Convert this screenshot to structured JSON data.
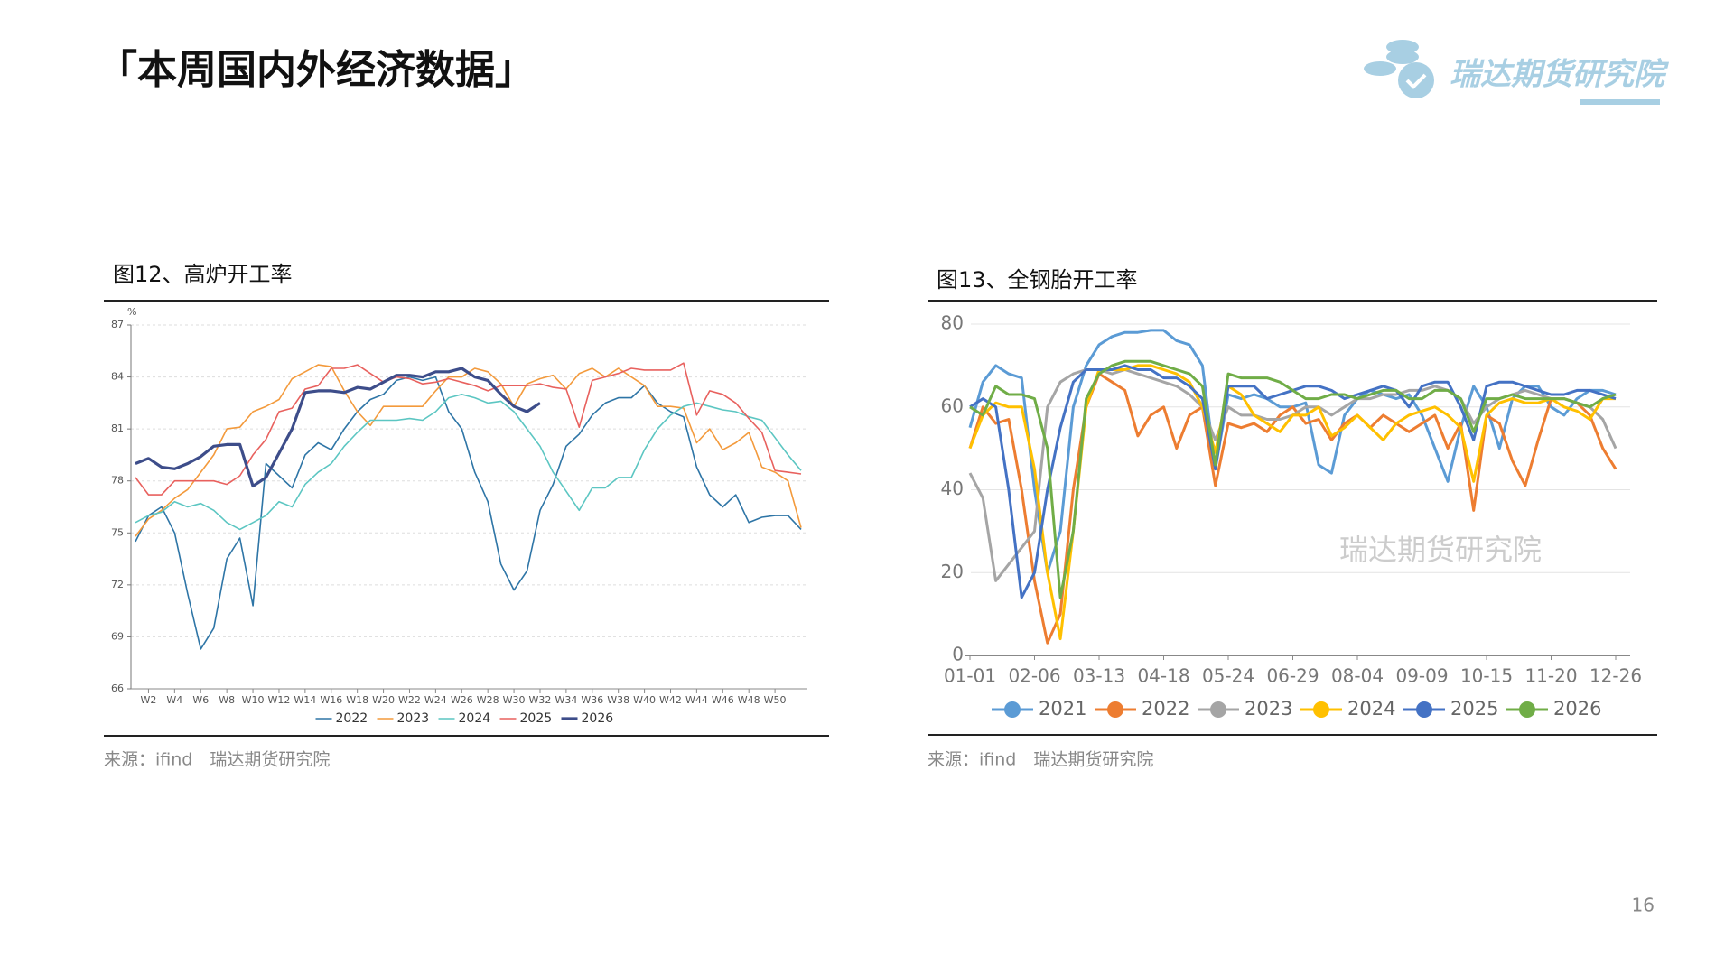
{
  "title": "「本周国内外经济数据」",
  "logo_text": "瑞达期货研究院",
  "page_number": "16",
  "chart_data": [
    {
      "type": "line",
      "title": "图12、高炉开工率",
      "y_unit": "%",
      "note": "来源：ifind　瑞达期货研究院",
      "categories": [
        null,
        "W2",
        null,
        "W4",
        null,
        "W6",
        null,
        "W8",
        null,
        "W10",
        null,
        "W12",
        null,
        "W14",
        null,
        "W16",
        null,
        "W18",
        null,
        "W20",
        null,
        "W22",
        null,
        "W24",
        null,
        "W26",
        null,
        "W28",
        null,
        "W30",
        null,
        "W32",
        null,
        "W34",
        null,
        "W36",
        null,
        "W38",
        null,
        "W40",
        null,
        "W42",
        null,
        "W44",
        null,
        "W46",
        null,
        "W48",
        null,
        "W50",
        null,
        null
      ],
      "ylim": [
        66,
        87
      ],
      "yticks": [
        66,
        69,
        72,
        75,
        78,
        81,
        84,
        87
      ],
      "grid": true,
      "legend": "bottom",
      "series": [
        {
          "name": "2022",
          "color": "#2e75a6",
          "values": [
            74.5,
            76,
            76.5,
            75,
            71.5,
            68.3,
            69.5,
            73.5,
            74.7,
            70.8,
            79,
            78.3,
            77.6,
            79.5,
            80.2,
            79.8,
            81,
            82,
            82.7,
            83,
            83.8,
            84,
            83.8,
            84,
            82,
            81,
            78.5,
            76.8,
            73.2,
            71.7,
            72.8,
            76.3,
            77.8,
            80,
            80.7,
            81.8,
            82.5,
            82.8,
            82.8,
            83.5,
            82.5,
            82,
            81.7,
            78.8,
            77.2,
            76.5,
            77.2,
            75.6,
            75.9,
            76,
            76,
            75.2
          ]
        },
        {
          "name": "2023",
          "color": "#f39a3c",
          "values": [
            74.8,
            75.8,
            76.3,
            77,
            77.5,
            78.5,
            79.5,
            81,
            81.1,
            82,
            82.3,
            82.7,
            83.9,
            84.3,
            84.7,
            84.6,
            83.2,
            82,
            81.2,
            82.3,
            82.3,
            82.3,
            82.3,
            83.2,
            84,
            84,
            84.5,
            84.3,
            83.6,
            82.3,
            83.6,
            83.9,
            84.1,
            83.3,
            84.2,
            84.5,
            84,
            84.5,
            84,
            83.5,
            82.3,
            82.3,
            82.2,
            80.2,
            81,
            79.8,
            80.2,
            80.8,
            78.8,
            78.5,
            78,
            75.3
          ]
        },
        {
          "name": "2024",
          "color": "#5cc6c2",
          "values": [
            75.6,
            76,
            76.2,
            76.8,
            76.5,
            76.7,
            76.3,
            75.6,
            75.2,
            75.6,
            76,
            76.8,
            76.5,
            77.8,
            78.5,
            79,
            80,
            80.8,
            81.5,
            81.5,
            81.5,
            81.6,
            81.5,
            82,
            82.8,
            83,
            82.8,
            82.5,
            82.6,
            82,
            81,
            80,
            78.5,
            77.4,
            76.3,
            77.6,
            77.6,
            78.2,
            78.2,
            79.8,
            81,
            81.8,
            82.3,
            82.5,
            82.3,
            82.1,
            82,
            81.7,
            81.5,
            80.5,
            79.5,
            78.6
          ]
        },
        {
          "name": "2025",
          "color": "#e8615e",
          "values": [
            78.2,
            77.2,
            77.2,
            78,
            78,
            78,
            78,
            77.8,
            78.3,
            79.5,
            80.4,
            82,
            82.2,
            83.3,
            83.5,
            84.5,
            84.5,
            84.7,
            84.2,
            83.7,
            84,
            83.9,
            83.6,
            83.7,
            83.9,
            83.7,
            83.5,
            83.2,
            83.5,
            83.5,
            83.5,
            83.6,
            83.4,
            83.3,
            81.1,
            83.8,
            84,
            84.2,
            84.5,
            84.4,
            84.4,
            84.4,
            84.8,
            81.8,
            83.2,
            83,
            82.5,
            81.6,
            80.8,
            78.6,
            78.5,
            78.4
          ]
        },
        {
          "name": "2026",
          "color": "#3d4d8a",
          "values": [
            79,
            79.3,
            78.8,
            78.7,
            79,
            79.4,
            80,
            80.1,
            80.1,
            77.7,
            78.2,
            79.6,
            81,
            83.1,
            83.2,
            83.2,
            83.1,
            83.4,
            83.3,
            83.7,
            84.1,
            84.1,
            84,
            84.3,
            84.3,
            84.5,
            84,
            83.8,
            83,
            82.3,
            82,
            82.5,
            null,
            null,
            null,
            null,
            null,
            null,
            null,
            null,
            null,
            null,
            null,
            null,
            null,
            null,
            null,
            null,
            null,
            null,
            null,
            null
          ]
        }
      ]
    },
    {
      "type": "line",
      "title": "图13、全钢胎开工率",
      "watermark": "瑞达期货研究院",
      "note": "来源：ifind　瑞达期货研究院",
      "categories": [
        "01-01",
        null,
        null,
        null,
        null,
        "02-06",
        null,
        null,
        null,
        null,
        "03-13",
        null,
        null,
        null,
        null,
        "04-18",
        null,
        null,
        null,
        null,
        "05-24",
        null,
        null,
        null,
        null,
        "06-29",
        null,
        null,
        null,
        null,
        "08-04",
        null,
        null,
        null,
        null,
        "09-09",
        null,
        null,
        null,
        null,
        "10-15",
        null,
        null,
        null,
        null,
        "11-20",
        null,
        null,
        null,
        null,
        "12-26"
      ],
      "ylim": [
        0,
        80
      ],
      "yticks": [
        0,
        20,
        40,
        60,
        80
      ],
      "grid": true,
      "legend": "bottom",
      "series": [
        {
          "name": "2021",
          "color": "#5b9bd5",
          "values": [
            55,
            66,
            70,
            68,
            67,
            40,
            20,
            30,
            60,
            70,
            75,
            77,
            78,
            78,
            78.5,
            78.5,
            76,
            75,
            70,
            45,
            63,
            62,
            63,
            62,
            60,
            60,
            61,
            46,
            44,
            58,
            62,
            64,
            63,
            62,
            63,
            58,
            50,
            42,
            55,
            65,
            60,
            50,
            62,
            65,
            65,
            60,
            58,
            62,
            64,
            64,
            63
          ]
        },
        {
          "name": "2022",
          "color": "#ed7d31",
          "values": [
            50,
            60,
            56,
            57,
            40,
            18,
            3,
            10,
            40,
            60,
            68,
            66,
            64,
            53,
            58,
            60,
            50,
            58,
            60,
            41,
            56,
            55,
            56,
            54,
            58,
            60,
            56,
            57,
            52,
            56,
            58,
            55,
            58,
            56,
            54,
            56,
            58,
            50,
            56,
            35,
            58,
            56,
            47,
            41,
            52,
            62,
            62,
            61,
            58,
            50,
            45
          ]
        },
        {
          "name": "2023",
          "color": "#a5a5a5",
          "values": [
            44,
            38,
            18,
            22,
            26,
            30,
            60,
            66,
            68,
            69,
            69,
            68,
            69,
            68,
            67,
            66,
            65,
            63,
            60,
            52,
            60,
            58,
            58,
            57,
            57,
            58,
            60,
            60,
            58,
            60,
            62,
            62,
            63,
            63,
            64,
            64,
            65,
            64,
            62,
            56,
            60,
            62,
            63,
            64,
            63,
            62,
            62,
            61,
            60,
            57,
            50
          ]
        },
        {
          "name": "2024",
          "color": "#ffc000",
          "values": [
            50,
            58,
            61,
            60,
            60,
            45,
            20,
            4,
            30,
            60,
            69,
            69,
            69,
            70,
            70,
            69,
            68,
            66,
            60,
            49,
            65,
            63,
            58,
            56,
            54,
            58,
            58,
            60,
            53,
            55,
            58,
            55,
            52,
            56,
            58,
            59,
            60,
            58,
            55,
            42,
            58,
            61,
            62,
            61,
            61,
            62,
            60,
            59,
            57,
            62,
            62
          ]
        },
        {
          "name": "2025",
          "color": "#4472c4",
          "values": [
            60,
            62,
            60,
            40,
            14,
            20,
            40,
            55,
            66,
            69,
            69,
            69,
            70,
            69,
            69,
            67,
            67,
            65,
            62,
            45,
            65,
            65,
            65,
            62,
            63,
            64,
            65,
            65,
            64,
            62,
            63,
            64,
            65,
            64,
            60,
            65,
            66,
            66,
            60,
            52,
            65,
            66,
            66,
            65,
            64,
            63,
            63,
            64,
            64,
            63,
            62
          ]
        },
        {
          "name": "2026",
          "color": "#70ad47",
          "values": [
            60,
            58,
            65,
            63,
            63,
            62,
            50,
            14,
            30,
            62,
            68,
            70,
            71,
            71,
            71,
            70,
            69,
            68,
            65,
            46,
            68,
            67,
            67,
            67,
            66,
            64,
            62,
            62,
            63,
            63,
            62,
            63,
            64,
            64,
            62,
            62,
            64,
            64,
            62,
            54,
            62,
            62,
            63,
            62,
            62,
            62,
            62,
            61,
            60,
            62,
            63
          ]
        }
      ]
    }
  ]
}
